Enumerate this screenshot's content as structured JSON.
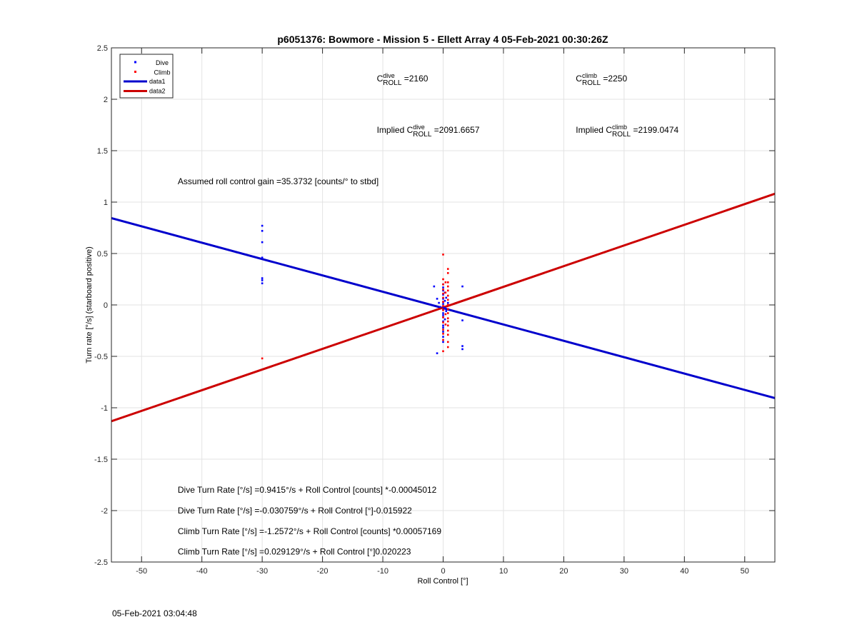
{
  "footer": {
    "timestamp": "05-Feb-2021 03:04:48"
  },
  "chart_data": {
    "type": "scatter",
    "title": "p6051376: Bowmore - Mission 5 - Ellett Array 4 05-Feb-2021 00:30:26Z",
    "xlabel": "Roll Control [°]",
    "ylabel": "Turn rate [°/s] (starboard positive)",
    "xlim": [
      -55,
      55
    ],
    "ylim": [
      -2.5,
      2.5
    ],
    "xticks": [
      -50,
      -40,
      -30,
      -20,
      -10,
      0,
      10,
      20,
      30,
      40,
      50
    ],
    "yticks": [
      -2.5,
      -2,
      -1.5,
      -1,
      -0.5,
      0,
      0.5,
      1,
      1.5,
      2,
      2.5
    ],
    "xtick_labels": [
      "-50",
      "-40",
      "-30",
      "-20",
      "-10",
      "0",
      "10",
      "20",
      "30",
      "40",
      "50"
    ],
    "ytick_labels": [
      "-2.5",
      "-2",
      "-1.5",
      "-1",
      "-0.5",
      "0",
      "0.5",
      "1",
      "1.5",
      "2",
      "2.5"
    ],
    "grid": true,
    "legend_position": "top-left",
    "legend": [
      {
        "label": "Dive",
        "kind": "marker",
        "color": "#0000ff"
      },
      {
        "label": "Climb",
        "kind": "marker",
        "color": "#ff0000"
      },
      {
        "label": "data1",
        "kind": "line",
        "color": "#0000cc"
      },
      {
        "label": "data2",
        "kind": "line",
        "color": "#cc0000"
      }
    ],
    "series": [
      {
        "name": "Dive",
        "kind": "scatter",
        "color": "#0000ff",
        "points": [
          [
            -30,
            0.77
          ],
          [
            -30,
            0.72
          ],
          [
            -30,
            0.61
          ],
          [
            -30,
            0.46
          ],
          [
            -30,
            0.26
          ],
          [
            -30,
            0.24
          ],
          [
            -30,
            0.21
          ],
          [
            -1.5,
            0.18
          ],
          [
            -1,
            0.06
          ],
          [
            -1,
            -0.47
          ],
          [
            -0.7,
            0.02
          ],
          [
            -0.5,
            -0.02
          ],
          [
            0,
            0.2
          ],
          [
            0,
            0.17
          ],
          [
            0,
            0.14
          ],
          [
            0,
            0.1
          ],
          [
            0,
            0.06
          ],
          [
            0,
            0.03
          ],
          [
            0,
            0.01
          ],
          [
            0,
            -0.02
          ],
          [
            0,
            -0.05
          ],
          [
            0,
            -0.08
          ],
          [
            0,
            -0.1
          ],
          [
            0,
            -0.12
          ],
          [
            0,
            -0.16
          ],
          [
            0,
            -0.2
          ],
          [
            0,
            -0.22
          ],
          [
            0,
            -0.26
          ],
          [
            0,
            -0.31
          ],
          [
            0,
            -0.36
          ],
          [
            0.3,
            0.12
          ],
          [
            0.3,
            0.04
          ],
          [
            0.3,
            -0.03
          ],
          [
            0.3,
            -0.14
          ],
          [
            0.5,
            0.07
          ],
          [
            0.5,
            -0.06
          ],
          [
            0.8,
            0.02
          ],
          [
            0.8,
            -0.04
          ],
          [
            3.2,
            0.18
          ],
          [
            3.2,
            -0.15
          ],
          [
            3.2,
            -0.4
          ],
          [
            3.2,
            -0.43
          ]
        ]
      },
      {
        "name": "Climb",
        "kind": "scatter",
        "color": "#ff0000",
        "points": [
          [
            -30,
            -0.52
          ],
          [
            0,
            0.49
          ],
          [
            0,
            0.25
          ],
          [
            0,
            0.2
          ],
          [
            0,
            0.15
          ],
          [
            0,
            0.11
          ],
          [
            0,
            0.07
          ],
          [
            0,
            0.03
          ],
          [
            0,
            -0.01
          ],
          [
            0,
            -0.05
          ],
          [
            0,
            -0.12
          ],
          [
            0,
            -0.17
          ],
          [
            0,
            -0.24
          ],
          [
            0,
            -0.28
          ],
          [
            0,
            -0.34
          ],
          [
            0,
            -0.45
          ],
          [
            0.4,
            0.22
          ],
          [
            0.4,
            0.12
          ],
          [
            0.4,
            -0.09
          ],
          [
            0.4,
            -0.19
          ],
          [
            0.8,
            0.35
          ],
          [
            0.8,
            0.31
          ],
          [
            0.8,
            0.22
          ],
          [
            0.8,
            0.18
          ],
          [
            0.8,
            0.14
          ],
          [
            0.8,
            0.09
          ],
          [
            0.8,
            0.05
          ],
          [
            0.8,
            0.0
          ],
          [
            0.8,
            -0.04
          ],
          [
            0.8,
            -0.08
          ],
          [
            0.8,
            -0.13
          ],
          [
            0.8,
            -0.16
          ],
          [
            0.8,
            -0.2
          ],
          [
            0.8,
            -0.25
          ],
          [
            0.8,
            -0.29
          ],
          [
            0.8,
            -0.36
          ],
          [
            0.8,
            -0.41
          ]
        ]
      },
      {
        "name": "data1",
        "kind": "line",
        "color": "#0000cc",
        "x": [
          -55,
          55
        ],
        "y": [
          0.844,
          -0.906
        ]
      },
      {
        "name": "data2",
        "kind": "line",
        "color": "#cc0000",
        "x": [
          -55,
          55
        ],
        "y": [
          -1.131,
          1.081
        ]
      }
    ],
    "annotations": [
      {
        "id": "c-dive",
        "anchor": [
          -11,
          2.2
        ],
        "base": "C",
        "sup": "dive",
        "sub": "ROLL",
        "suffix": " =2160"
      },
      {
        "id": "c-climb",
        "anchor": [
          22,
          2.2
        ],
        "base": "C",
        "sup": "climb",
        "sub": "ROLL",
        "suffix": " =2250"
      },
      {
        "id": "implied-dive",
        "anchor": [
          -11,
          1.7
        ],
        "prefix": "Implied ",
        "base": "C",
        "sup": "dive",
        "sub": "ROLL",
        "suffix": " =2091.6657"
      },
      {
        "id": "implied-climb",
        "anchor": [
          22,
          1.7
        ],
        "prefix": "Implied ",
        "base": "C",
        "sup": "climb",
        "sub": "ROLL",
        "suffix": " =2199.0474"
      },
      {
        "id": "gain",
        "anchor": [
          -44,
          1.2
        ],
        "text": "Assumed roll control gain =35.3732 [counts/° to stbd]"
      },
      {
        "id": "eq1",
        "anchor": [
          -44,
          -1.8
        ],
        "text": "Dive Turn Rate [°/s] =0.9415°/s + Roll Control [counts] *-0.00045012"
      },
      {
        "id": "eq2",
        "anchor": [
          -44,
          -2.0
        ],
        "text": "Dive Turn Rate [°/s] =-0.030759°/s + Roll Control [°]-0.015922"
      },
      {
        "id": "eq3",
        "anchor": [
          -44,
          -2.2
        ],
        "text": "Climb Turn Rate [°/s] =-1.2572°/s + Roll Control [counts] *0.00057169"
      },
      {
        "id": "eq4",
        "anchor": [
          -44,
          -2.4
        ],
        "text": "Climb Turn Rate [°/s] =0.029129°/s + Roll Control [°]0.020223"
      }
    ]
  }
}
